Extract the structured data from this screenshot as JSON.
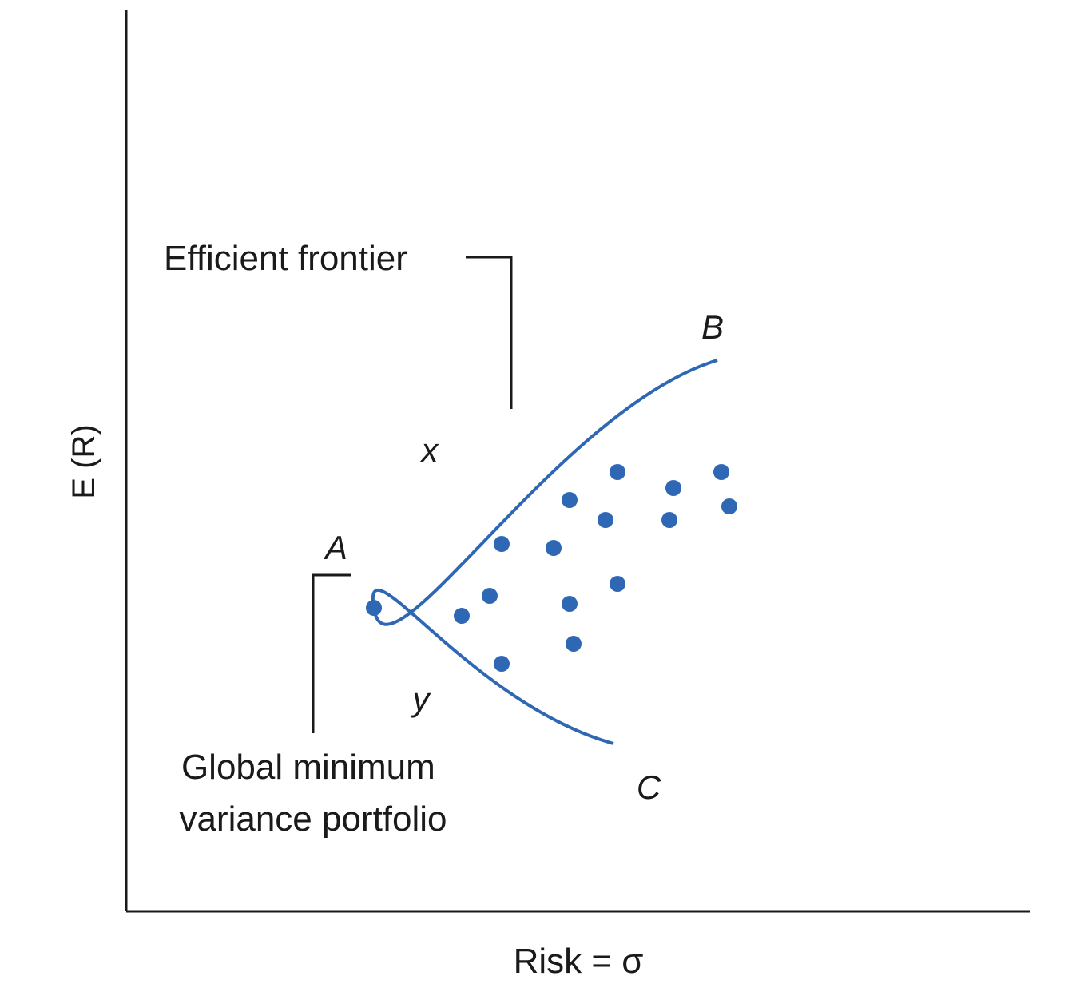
{
  "chart_data": {
    "type": "scatter",
    "xlabel": "Risk = σ",
    "ylabel": "E (R)",
    "grid": false,
    "frontier_color": "#2e67b4",
    "point_color": "#2e67b4",
    "frontier": {
      "name": "Efficient frontier",
      "points": {
        "A": [
          3.1,
          3.8
        ],
        "B": [
          7.4,
          6.9
        ],
        "C": [
          6.1,
          2.1
        ]
      },
      "curve_labels": {
        "upper": "x",
        "lower": "y"
      }
    },
    "global_minimum_label": "Global minimum\nvariance portfolio",
    "portfolios": [
      {
        "x": 4.2,
        "y": 3.7
      },
      {
        "x": 4.7,
        "y": 3.1
      },
      {
        "x": 4.7,
        "y": 4.6
      },
      {
        "x": 4.55,
        "y": 3.95
      },
      {
        "x": 5.35,
        "y": 4.55
      },
      {
        "x": 5.55,
        "y": 5.15
      },
      {
        "x": 5.55,
        "y": 3.85
      },
      {
        "x": 5.6,
        "y": 3.35
      },
      {
        "x": 6.0,
        "y": 4.9
      },
      {
        "x": 6.15,
        "y": 5.5
      },
      {
        "x": 6.15,
        "y": 4.1
      },
      {
        "x": 6.8,
        "y": 4.9
      },
      {
        "x": 6.85,
        "y": 5.3
      },
      {
        "x": 7.45,
        "y": 5.5
      },
      {
        "x": 7.55,
        "y": 5.07
      }
    ],
    "point_labels": {
      "A": "A",
      "B": "B",
      "C": "C"
    }
  }
}
